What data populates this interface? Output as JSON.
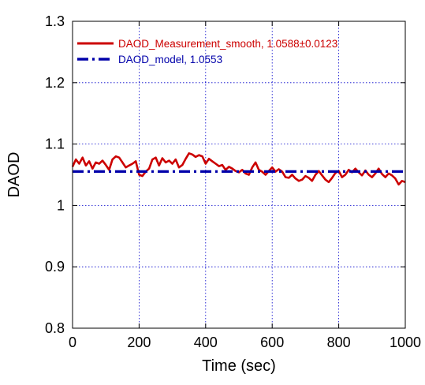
{
  "chart_data": {
    "type": "line",
    "xlabel": "Time (sec)",
    "ylabel": "DAOD",
    "xlim": [
      0,
      1000
    ],
    "ylim": [
      0.8,
      1.3
    ],
    "xticks": [
      0,
      200,
      400,
      600,
      800,
      1000
    ],
    "yticks": [
      0.8,
      0.9,
      1.0,
      1.1,
      1.2,
      1.3
    ],
    "xtick_labels": [
      "0",
      "200",
      "400",
      "600",
      "800",
      "1000"
    ],
    "ytick_labels": [
      "0.8",
      "0.9",
      "1",
      "1.1",
      "1.2",
      "1.3"
    ],
    "grid": true,
    "legend_position": "top-left",
    "series": [
      {
        "name": "DAOD_Measurement_smooth, 1.0588±0.0123",
        "color": "#cc0000",
        "style": "solid",
        "x": [
          0,
          10,
          20,
          30,
          40,
          50,
          60,
          70,
          80,
          90,
          100,
          110,
          120,
          130,
          140,
          150,
          160,
          170,
          180,
          190,
          200,
          210,
          220,
          230,
          240,
          250,
          260,
          270,
          280,
          290,
          300,
          310,
          320,
          330,
          340,
          350,
          360,
          370,
          380,
          390,
          400,
          410,
          420,
          430,
          440,
          450,
          460,
          470,
          480,
          490,
          500,
          510,
          520,
          530,
          540,
          550,
          560,
          570,
          580,
          590,
          600,
          610,
          620,
          630,
          640,
          650,
          660,
          670,
          680,
          690,
          700,
          710,
          720,
          730,
          740,
          750,
          760,
          770,
          780,
          790,
          800,
          810,
          820,
          830,
          840,
          850,
          860,
          870,
          880,
          890,
          900,
          910,
          920,
          930,
          940,
          950,
          960,
          970,
          980,
          990,
          1000
        ],
        "y": [
          1.063,
          1.075,
          1.068,
          1.078,
          1.065,
          1.072,
          1.06,
          1.07,
          1.068,
          1.073,
          1.066,
          1.058,
          1.075,
          1.08,
          1.078,
          1.07,
          1.062,
          1.065,
          1.068,
          1.072,
          1.05,
          1.048,
          1.055,
          1.06,
          1.075,
          1.078,
          1.065,
          1.077,
          1.07,
          1.073,
          1.068,
          1.075,
          1.062,
          1.066,
          1.076,
          1.085,
          1.083,
          1.079,
          1.082,
          1.08,
          1.068,
          1.076,
          1.072,
          1.068,
          1.064,
          1.066,
          1.058,
          1.063,
          1.06,
          1.056,
          1.054,
          1.058,
          1.052,
          1.05,
          1.062,
          1.07,
          1.058,
          1.055,
          1.05,
          1.056,
          1.062,
          1.055,
          1.059,
          1.055,
          1.046,
          1.045,
          1.05,
          1.044,
          1.04,
          1.042,
          1.048,
          1.045,
          1.04,
          1.05,
          1.056,
          1.049,
          1.042,
          1.038,
          1.045,
          1.053,
          1.056,
          1.046,
          1.05,
          1.058,
          1.054,
          1.06,
          1.054,
          1.049,
          1.057,
          1.05,
          1.046,
          1.052,
          1.06,
          1.051,
          1.046,
          1.052,
          1.049,
          1.044,
          1.034,
          1.04,
          1.038
        ]
      },
      {
        "name": "DAOD_model, 1.0553",
        "color": "#0000aa",
        "style": "dashdot",
        "x": [
          0,
          1000
        ],
        "y": [
          1.0553,
          1.0553
        ]
      }
    ]
  }
}
